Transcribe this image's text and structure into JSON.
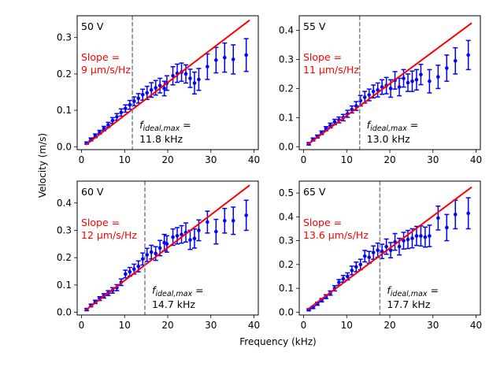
{
  "figure": {
    "xlabel": "Frequency (kHz)",
    "ylabel": "Velocity (m/s)"
  },
  "chart_data": [
    {
      "type": "scatter",
      "panel": "50 V",
      "slope_label": [
        "Slope =",
        "9 µm/s/Hz"
      ],
      "fmax_label": [
        "f_ideal,max =",
        "11.8 kHz"
      ],
      "fmax_value": 11.8,
      "fit_line": {
        "x": [
          1,
          39
        ],
        "y": [
          0.005,
          0.348
        ]
      },
      "xlim": [
        -1,
        41
      ],
      "ylim": [
        -0.008,
        0.36
      ],
      "xticks": [
        0,
        10,
        20,
        30,
        40
      ],
      "xtick_labels": [
        "0",
        "10",
        "20",
        "30",
        "40"
      ],
      "yticks": [
        0.0,
        0.1,
        0.2,
        0.3
      ],
      "ytick_labels": [
        "0.0",
        "0.1",
        "0.2",
        "0.3"
      ],
      "series": [
        {
          "x": [
            1.2,
            2.2,
            3.2,
            4.2,
            5.2,
            6.2,
            7.2,
            8.2,
            9.2,
            10.2,
            11.2,
            12.2,
            13.2,
            14.2,
            15.2,
            16.2,
            17.2,
            18.2,
            19.2,
            19.8,
            21.2,
            22.2,
            23.2,
            24.2,
            25.2,
            26.2,
            27.2,
            29.2,
            31.2,
            33.2,
            35.2,
            38.2
          ],
          "y": [
            0.01,
            0.02,
            0.03,
            0.04,
            0.05,
            0.06,
            0.072,
            0.082,
            0.094,
            0.105,
            0.115,
            0.125,
            0.133,
            0.143,
            0.148,
            0.156,
            0.162,
            0.168,
            0.16,
            0.175,
            0.195,
            0.202,
            0.205,
            0.2,
            0.188,
            0.175,
            0.185,
            0.22,
            0.238,
            0.245,
            0.24,
            0.252
          ],
          "err": [
            0.003,
            0.004,
            0.005,
            0.005,
            0.006,
            0.007,
            0.008,
            0.009,
            0.01,
            0.01,
            0.012,
            0.012,
            0.013,
            0.015,
            0.018,
            0.02,
            0.02,
            0.02,
            0.02,
            0.02,
            0.025,
            0.025,
            0.025,
            0.025,
            0.025,
            0.03,
            0.03,
            0.035,
            0.035,
            0.04,
            0.04,
            0.045
          ]
        }
      ]
    },
    {
      "type": "scatter",
      "panel": "55 V",
      "slope_label": [
        "Slope =",
        "11 µm/s/Hz"
      ],
      "fmax_label": [
        "f_ideal,max =",
        "13.0 kHz"
      ],
      "fmax_value": 13.0,
      "fit_line": {
        "x": [
          1,
          39
        ],
        "y": [
          0.008,
          0.425
        ]
      },
      "xlim": [
        -1,
        41
      ],
      "ylim": [
        -0.01,
        0.45
      ],
      "xticks": [
        0,
        10,
        20,
        30,
        40
      ],
      "xtick_labels": [
        "0",
        "10",
        "20",
        "30",
        "40"
      ],
      "yticks": [
        0.0,
        0.1,
        0.2,
        0.3,
        0.4
      ],
      "ytick_labels": [
        "0.0",
        "0.1",
        "0.2",
        "0.3",
        "0.4"
      ],
      "series": [
        {
          "x": [
            1.2,
            2.2,
            3.2,
            4.2,
            5.2,
            6.2,
            7.2,
            8.2,
            9.2,
            10.2,
            11.2,
            12.2,
            13.2,
            14.2,
            15.2,
            16.2,
            17.2,
            18.2,
            19.2,
            20.2,
            21.2,
            22.2,
            23.2,
            24.2,
            25.2,
            26.2,
            27.2,
            29.2,
            31.2,
            33.2,
            35.2,
            38.2
          ],
          "y": [
            0.01,
            0.025,
            0.035,
            0.048,
            0.062,
            0.073,
            0.085,
            0.092,
            0.1,
            0.113,
            0.128,
            0.14,
            0.158,
            0.17,
            0.178,
            0.19,
            0.195,
            0.205,
            0.21,
            0.2,
            0.228,
            0.205,
            0.235,
            0.22,
            0.225,
            0.23,
            0.248,
            0.225,
            0.24,
            0.27,
            0.295,
            0.315
          ],
          "err": [
            0.004,
            0.005,
            0.005,
            0.006,
            0.007,
            0.008,
            0.009,
            0.01,
            0.011,
            0.012,
            0.012,
            0.015,
            0.018,
            0.02,
            0.02,
            0.022,
            0.024,
            0.025,
            0.028,
            0.03,
            0.03,
            0.03,
            0.03,
            0.03,
            0.035,
            0.035,
            0.035,
            0.04,
            0.04,
            0.045,
            0.045,
            0.05
          ]
        }
      ]
    },
    {
      "type": "scatter",
      "panel": "60 V",
      "slope_label": [
        "Slope =",
        "12 µm/s/Hz"
      ],
      "fmax_label": [
        "f_ideal,max =",
        "14.7 kHz"
      ],
      "fmax_value": 14.7,
      "fit_line": {
        "x": [
          1,
          39
        ],
        "y": [
          0.008,
          0.465
        ]
      },
      "xlim": [
        -1,
        41
      ],
      "ylim": [
        -0.01,
        0.48
      ],
      "xticks": [
        0,
        10,
        20,
        30,
        40
      ],
      "xtick_labels": [
        "0",
        "10",
        "20",
        "30",
        "40"
      ],
      "yticks": [
        0.0,
        0.1,
        0.2,
        0.3,
        0.4
      ],
      "ytick_labels": [
        "0.0",
        "0.1",
        "0.2",
        "0.3",
        "0.4"
      ],
      "series": [
        {
          "x": [
            1.2,
            2.2,
            3.2,
            4.2,
            5.2,
            6.2,
            7.2,
            8.2,
            9.2,
            10.2,
            11.2,
            12.2,
            13.2,
            14.2,
            15.2,
            16.2,
            17.2,
            18.2,
            19.2,
            19.8,
            21.2,
            22.2,
            23.2,
            24.2,
            25.2,
            26.2,
            27.2,
            29.2,
            31.2,
            33.2,
            35.2,
            38.2
          ],
          "y": [
            0.01,
            0.025,
            0.038,
            0.05,
            0.06,
            0.07,
            0.08,
            0.09,
            0.11,
            0.14,
            0.148,
            0.158,
            0.168,
            0.195,
            0.21,
            0.22,
            0.215,
            0.235,
            0.255,
            0.25,
            0.275,
            0.28,
            0.285,
            0.292,
            0.265,
            0.27,
            0.3,
            0.33,
            0.295,
            0.335,
            0.335,
            0.355
          ],
          "err": [
            0.004,
            0.005,
            0.006,
            0.007,
            0.008,
            0.009,
            0.01,
            0.011,
            0.012,
            0.014,
            0.016,
            0.018,
            0.02,
            0.022,
            0.024,
            0.025,
            0.025,
            0.028,
            0.03,
            0.03,
            0.03,
            0.03,
            0.032,
            0.035,
            0.035,
            0.035,
            0.038,
            0.04,
            0.045,
            0.045,
            0.05,
            0.055
          ]
        }
      ]
    },
    {
      "type": "scatter",
      "panel": "65 V",
      "slope_label": [
        "Slope =",
        "13.6 µm/s/Hz"
      ],
      "fmax_label": [
        "f_ideal,max =",
        "17.7 kHz"
      ],
      "fmax_value": 17.7,
      "fit_line": {
        "x": [
          1,
          39
        ],
        "y": [
          0.012,
          0.525
        ]
      },
      "xlim": [
        -1,
        41
      ],
      "ylim": [
        -0.012,
        0.55
      ],
      "xticks": [
        0,
        10,
        20,
        30,
        40
      ],
      "xtick_labels": [
        "0",
        "10",
        "20",
        "30",
        "40"
      ],
      "yticks": [
        0.0,
        0.1,
        0.2,
        0.3,
        0.4,
        0.5
      ],
      "ytick_labels": [
        "0.0",
        "0.1",
        "0.2",
        "0.3",
        "0.4",
        "0.5"
      ],
      "series": [
        {
          "x": [
            1.2,
            2.2,
            3.2,
            4.2,
            5.2,
            6.2,
            7.2,
            8.2,
            9.2,
            10.2,
            11.2,
            12.2,
            13.2,
            14.2,
            15.2,
            16.2,
            17.2,
            18.2,
            19.2,
            20.2,
            21.2,
            22.2,
            23.2,
            24.2,
            25.2,
            26.2,
            27.2,
            28.2,
            29.2,
            31.2,
            33.2,
            35.2,
            38.2
          ],
          "y": [
            0.01,
            0.02,
            0.035,
            0.05,
            0.065,
            0.08,
            0.1,
            0.125,
            0.14,
            0.15,
            0.175,
            0.19,
            0.2,
            0.235,
            0.23,
            0.25,
            0.26,
            0.255,
            0.275,
            0.26,
            0.295,
            0.275,
            0.3,
            0.305,
            0.31,
            0.32,
            0.32,
            0.315,
            0.32,
            0.395,
            0.355,
            0.41,
            0.415
          ],
          "err": [
            0.004,
            0.005,
            0.006,
            0.007,
            0.008,
            0.009,
            0.011,
            0.012,
            0.014,
            0.015,
            0.018,
            0.02,
            0.022,
            0.024,
            0.025,
            0.028,
            0.03,
            0.03,
            0.032,
            0.032,
            0.035,
            0.035,
            0.035,
            0.038,
            0.04,
            0.04,
            0.042,
            0.042,
            0.045,
            0.05,
            0.055,
            0.06,
            0.065
          ]
        }
      ]
    }
  ]
}
